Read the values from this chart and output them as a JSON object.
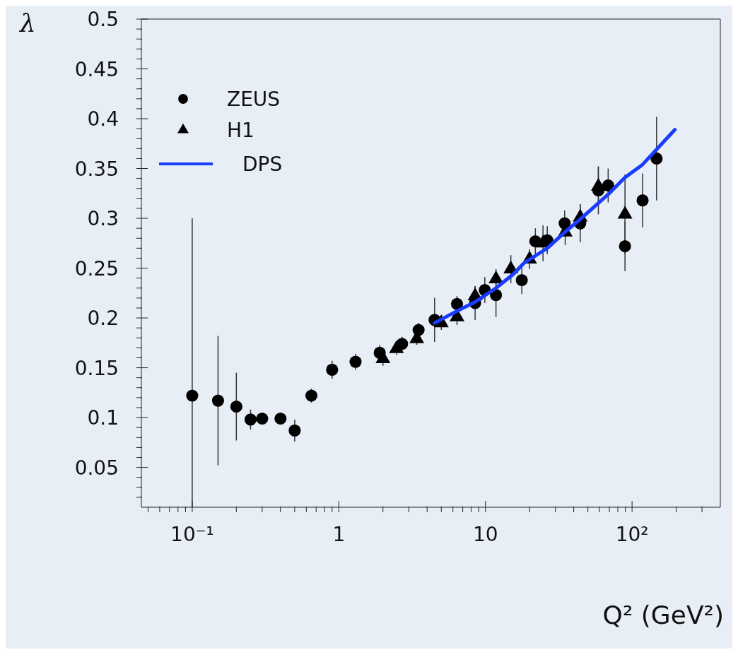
{
  "chart_data": {
    "type": "scatter",
    "ylabel": "λ",
    "xlabel": "Q² (GeV²)",
    "log": "x",
    "legend": "top left",
    "xlim": [
      0.045,
      400
    ],
    "xticks": [
      {
        "value": 0.05,
        "label": null
      },
      {
        "value": 0.06,
        "label": null
      },
      {
        "value": 0.07,
        "label": null
      },
      {
        "value": 0.08,
        "label": null
      },
      {
        "value": 0.09,
        "label": null
      },
      {
        "value": 0.1,
        "label": "10⁻¹"
      },
      {
        "value": 0.2,
        "label": null
      },
      {
        "value": 0.3,
        "label": null
      },
      {
        "value": 0.4,
        "label": null
      },
      {
        "value": 0.5,
        "label": null
      },
      {
        "value": 0.6,
        "label": null
      },
      {
        "value": 0.7,
        "label": null
      },
      {
        "value": 0.8,
        "label": null
      },
      {
        "value": 0.9,
        "label": null
      },
      1,
      {
        "value": 2,
        "label": null
      },
      {
        "value": 3,
        "label": null
      },
      {
        "value": 4,
        "label": null
      },
      {
        "value": 5,
        "label": null
      },
      {
        "value": 6,
        "label": null
      },
      {
        "value": 7,
        "label": null
      },
      {
        "value": 8,
        "label": null
      },
      {
        "value": 9,
        "label": null
      },
      10,
      {
        "value": 20,
        "label": null
      },
      {
        "value": 30,
        "label": null
      },
      {
        "value": 40,
        "label": null
      },
      {
        "value": 50,
        "label": null
      },
      {
        "value": 60,
        "label": null
      },
      {
        "value": 70,
        "label": null
      },
      {
        "value": 80,
        "label": null
      },
      {
        "value": 90,
        "label": null
      },
      {
        "value": 100,
        "label": "10²"
      },
      {
        "value": 200,
        "label": null
      },
      {
        "value": 300,
        "label": null
      }
    ],
    "ylim": [
      0.01,
      0.5
    ],
    "yticks": [
      {
        "value": 0.02,
        "label": null
      },
      {
        "value": 0.03,
        "label": null
      },
      {
        "value": 0.04,
        "label": null
      },
      0.05,
      {
        "value": 0.06,
        "label": null
      },
      {
        "value": 0.07,
        "label": null
      },
      {
        "value": 0.08,
        "label": null
      },
      {
        "value": 0.09,
        "label": null
      },
      0.1,
      {
        "value": 0.11,
        "label": null
      },
      {
        "value": 0.12,
        "label": null
      },
      {
        "value": 0.13,
        "label": null
      },
      {
        "value": 0.14,
        "label": null
      },
      0.15,
      {
        "value": 0.16,
        "label": null
      },
      {
        "value": 0.17,
        "label": null
      },
      {
        "value": 0.18,
        "label": null
      },
      {
        "value": 0.19,
        "label": null
      },
      0.2,
      {
        "value": 0.21,
        "label": null
      },
      {
        "value": 0.22,
        "label": null
      },
      {
        "value": 0.23,
        "label": null
      },
      {
        "value": 0.24,
        "label": null
      },
      0.25,
      {
        "value": 0.26,
        "label": null
      },
      {
        "value": 0.27,
        "label": null
      },
      {
        "value": 0.28,
        "label": null
      },
      {
        "value": 0.29,
        "label": null
      },
      0.3,
      {
        "value": 0.31,
        "label": null
      },
      {
        "value": 0.32,
        "label": null
      },
      {
        "value": 0.33,
        "label": null
      },
      {
        "value": 0.34,
        "label": null
      },
      0.35,
      {
        "value": 0.36,
        "label": null
      },
      {
        "value": 0.37,
        "label": null
      },
      {
        "value": 0.38,
        "label": null
      },
      {
        "value": 0.39,
        "label": null
      },
      0.4,
      {
        "value": 0.41,
        "label": null
      },
      {
        "value": 0.42,
        "label": null
      },
      {
        "value": 0.43,
        "label": null
      },
      {
        "value": 0.44,
        "label": null
      },
      0.45,
      {
        "value": 0.46,
        "label": null
      },
      {
        "value": 0.47,
        "label": null
      },
      {
        "value": 0.48,
        "label": null
      },
      {
        "value": 0.49,
        "label": null
      },
      0.5
    ],
    "series": [
      {
        "name": "ZEUS",
        "type": "scatter",
        "marker": "circle",
        "color": "#000000",
        "x": [
          0.1,
          0.15,
          0.2,
          0.25,
          0.3,
          0.4,
          0.5,
          0.65,
          0.9,
          1.3,
          1.9,
          2.7,
          3.5,
          4.5,
          6.4,
          8.5,
          9.9,
          11.8,
          17.7,
          21.9,
          26.4,
          34.7,
          44.3,
          58.9,
          68.7,
          89.5,
          118,
          147
        ],
        "values": [
          0.122,
          0.117,
          0.111,
          0.098,
          0.099,
          0.099,
          0.087,
          0.122,
          0.148,
          0.156,
          0.165,
          0.174,
          0.188,
          0.198,
          0.214,
          0.215,
          0.228,
          0.223,
          0.238,
          0.277,
          0.278,
          0.295,
          0.295,
          0.328,
          0.333,
          0.272,
          0.318,
          0.36
        ],
        "errors": [
          [
            0.01,
            0.3
          ],
          0.065,
          0.034,
          0.01,
          0.006,
          0.005,
          0.011,
          0.007,
          0.009,
          0.008,
          0.008,
          0.007,
          0.007,
          0.022,
          0.008,
          0.017,
          0.013,
          0.022,
          0.014,
          0.013,
          0.014,
          0.013,
          0.019,
          0.024,
          0.017,
          0.025,
          0.027,
          0.042
        ]
      },
      {
        "name": "H1",
        "type": "scatter",
        "marker": "triangle",
        "color": "#000000",
        "x": [
          2,
          2.47,
          3.4,
          5,
          6.4,
          8.5,
          11.8,
          14.9,
          20,
          24.7,
          35,
          44.3,
          58.9,
          89.5
        ],
        "values": [
          0.159,
          0.169,
          0.179,
          0.195,
          0.201,
          0.222,
          0.239,
          0.249,
          0.259,
          0.275,
          0.286,
          0.301,
          0.332,
          0.304
        ],
        "errors": [
          0.007,
          0.006,
          0.006,
          0.007,
          0.008,
          0.01,
          0.01,
          0.014,
          0.01,
          0.018,
          0.013,
          0.013,
          0.02,
          0.04
        ]
      },
      {
        "name": "DPS",
        "type": "line",
        "marker": "none",
        "line_style": "solid",
        "color": "#1a3cff",
        "x": [
          4.5,
          6.4,
          8.5,
          11.8,
          15.5,
          18.3,
          26.4,
          34.7,
          44.3,
          68.7,
          89.5,
          118,
          196
        ],
        "values": [
          0.195,
          0.207,
          0.216,
          0.23,
          0.244,
          0.255,
          0.27,
          0.286,
          0.299,
          0.324,
          0.341,
          0.354,
          0.389
        ]
      }
    ]
  }
}
